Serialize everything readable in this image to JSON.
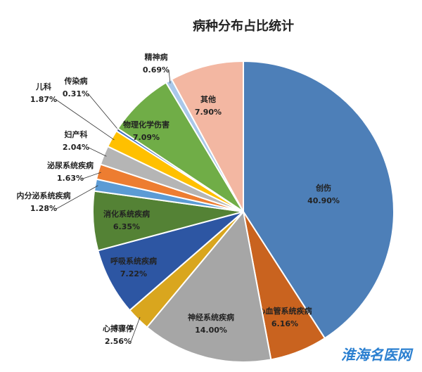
{
  "chart_data": {
    "type": "pie",
    "title": "病种分布占比统计",
    "categories": [
      "创伤",
      "心血管系统疾病",
      "神经系统疾病",
      "心搏骤停",
      "呼吸系统疾病",
      "消化系统疾病",
      "内分泌系统疾病",
      "泌尿系统疾病",
      "妇产科",
      "儿科",
      "传染病",
      "物理化学伤害",
      "精神病",
      "其他"
    ],
    "values": [
      40.9,
      6.16,
      14.0,
      2.56,
      7.22,
      6.35,
      1.28,
      1.63,
      2.04,
      1.87,
      0.31,
      7.09,
      0.69,
      7.9
    ],
    "value_labels": [
      "40.90%",
      "6.16%",
      "14.00%",
      "2.56%",
      "7.22%",
      "6.35%",
      "1.28%",
      "1.63%",
      "2.04%",
      "1.87%",
      "0.31%",
      "7.09%",
      "0.69%",
      "7.90%"
    ],
    "colors": [
      "#4d7fb8",
      "#c9631f",
      "#a6a6a6",
      "#d9a61e",
      "#2d56a3",
      "#548235",
      "#5b9bd5",
      "#ed7d31",
      "#b5b5b5",
      "#ffc000",
      "#3f6fc0",
      "#70ad47",
      "#a9c8ea",
      "#f3b7a2"
    ]
  },
  "watermark": "淮海名医网"
}
